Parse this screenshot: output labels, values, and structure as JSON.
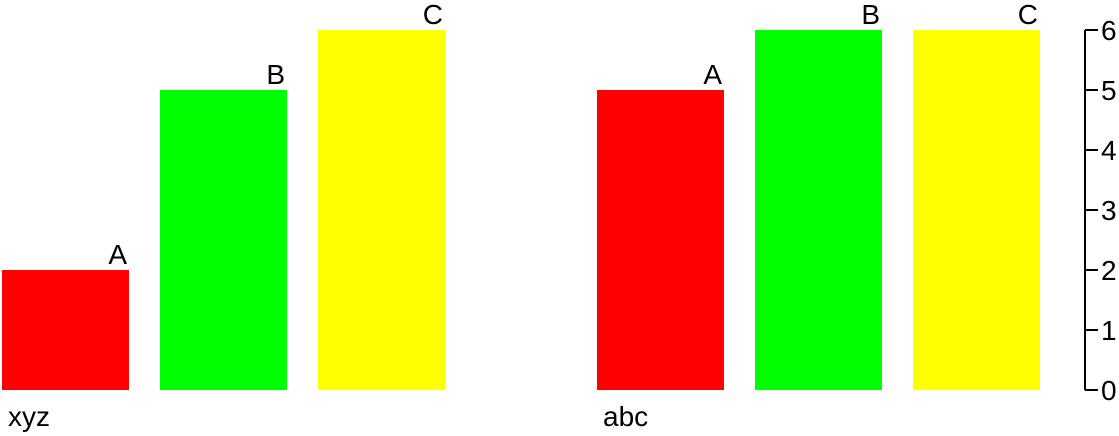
{
  "chart_data": {
    "type": "bar",
    "title": "",
    "xlabel": "",
    "ylabel": "",
    "ylim": [
      0,
      6
    ],
    "yticks": [
      0,
      1,
      2,
      3,
      4,
      5,
      6
    ],
    "y_axis_side": "right",
    "grid": false,
    "legend": "none",
    "groups": [
      {
        "label": "xyz",
        "bars": [
          {
            "category": "A",
            "value": 2,
            "color": "#ff0000"
          },
          {
            "category": "B",
            "value": 5,
            "color": "#00ff00"
          },
          {
            "category": "C",
            "value": 6,
            "color": "#ffff00"
          }
        ]
      },
      {
        "label": "abc",
        "bars": [
          {
            "category": "A",
            "value": 5,
            "color": "#ff0000"
          },
          {
            "category": "B",
            "value": 6,
            "color": "#00ff00"
          },
          {
            "category": "C",
            "value": 6,
            "color": "#ffff00"
          }
        ]
      }
    ]
  }
}
